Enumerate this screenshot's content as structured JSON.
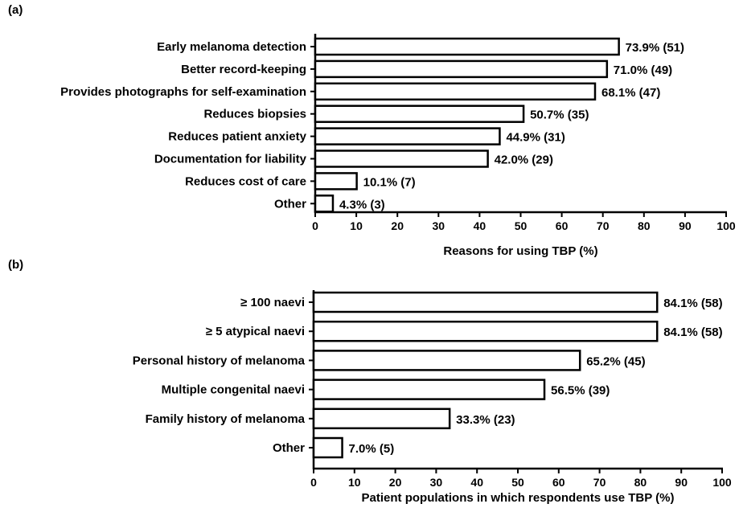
{
  "panel_labels": [
    "(a)",
    "(b)"
  ],
  "chart_data": [
    {
      "type": "bar",
      "orientation": "horizontal",
      "panel": "(a)",
      "categories": [
        "Early melanoma detection",
        "Better record-keeping",
        "Provides photographs for self-examination",
        "Reduces biopsies",
        "Reduces patient anxiety",
        "Documentation for liability",
        "Reduces cost of care",
        "Other"
      ],
      "values": [
        73.9,
        71.0,
        68.1,
        50.7,
        44.9,
        42.0,
        10.1,
        4.3
      ],
      "data_labels": [
        "73.9% (51)",
        "71.0% (49)",
        "68.1% (47)",
        "50.7% (35)",
        "44.9% (31)",
        "42.0% (29)",
        "10.1% (7)",
        "4.3% (3)"
      ],
      "xlabel": "Reasons for using TBP (%)",
      "xlim": [
        0,
        100
      ],
      "xticks": [
        0,
        10,
        20,
        30,
        40,
        50,
        60,
        70,
        80,
        90,
        100
      ],
      "grid": false,
      "bar_fill": "#ffffff",
      "bar_stroke": "#000000"
    },
    {
      "type": "bar",
      "orientation": "horizontal",
      "panel": "(b)",
      "categories": [
        "≥ 100 naevi",
        "≥ 5 atypical naevi",
        "Personal history of melanoma",
        "Multiple congenital naevi",
        "Family history of melanoma",
        "Other"
      ],
      "values": [
        84.1,
        84.1,
        65.2,
        56.5,
        33.3,
        7.0
      ],
      "data_labels": [
        "84.1% (58)",
        "84.1% (58)",
        "65.2% (45)",
        "56.5% (39)",
        "33.3% (23)",
        "7.0% (5)"
      ],
      "xlabel": "Patient populations in which respondents use TBP (%)",
      "xlim": [
        0,
        100
      ],
      "xticks": [
        0,
        10,
        20,
        30,
        40,
        50,
        60,
        70,
        80,
        90,
        100
      ],
      "grid": false,
      "bar_fill": "#ffffff",
      "bar_stroke": "#000000"
    }
  ]
}
